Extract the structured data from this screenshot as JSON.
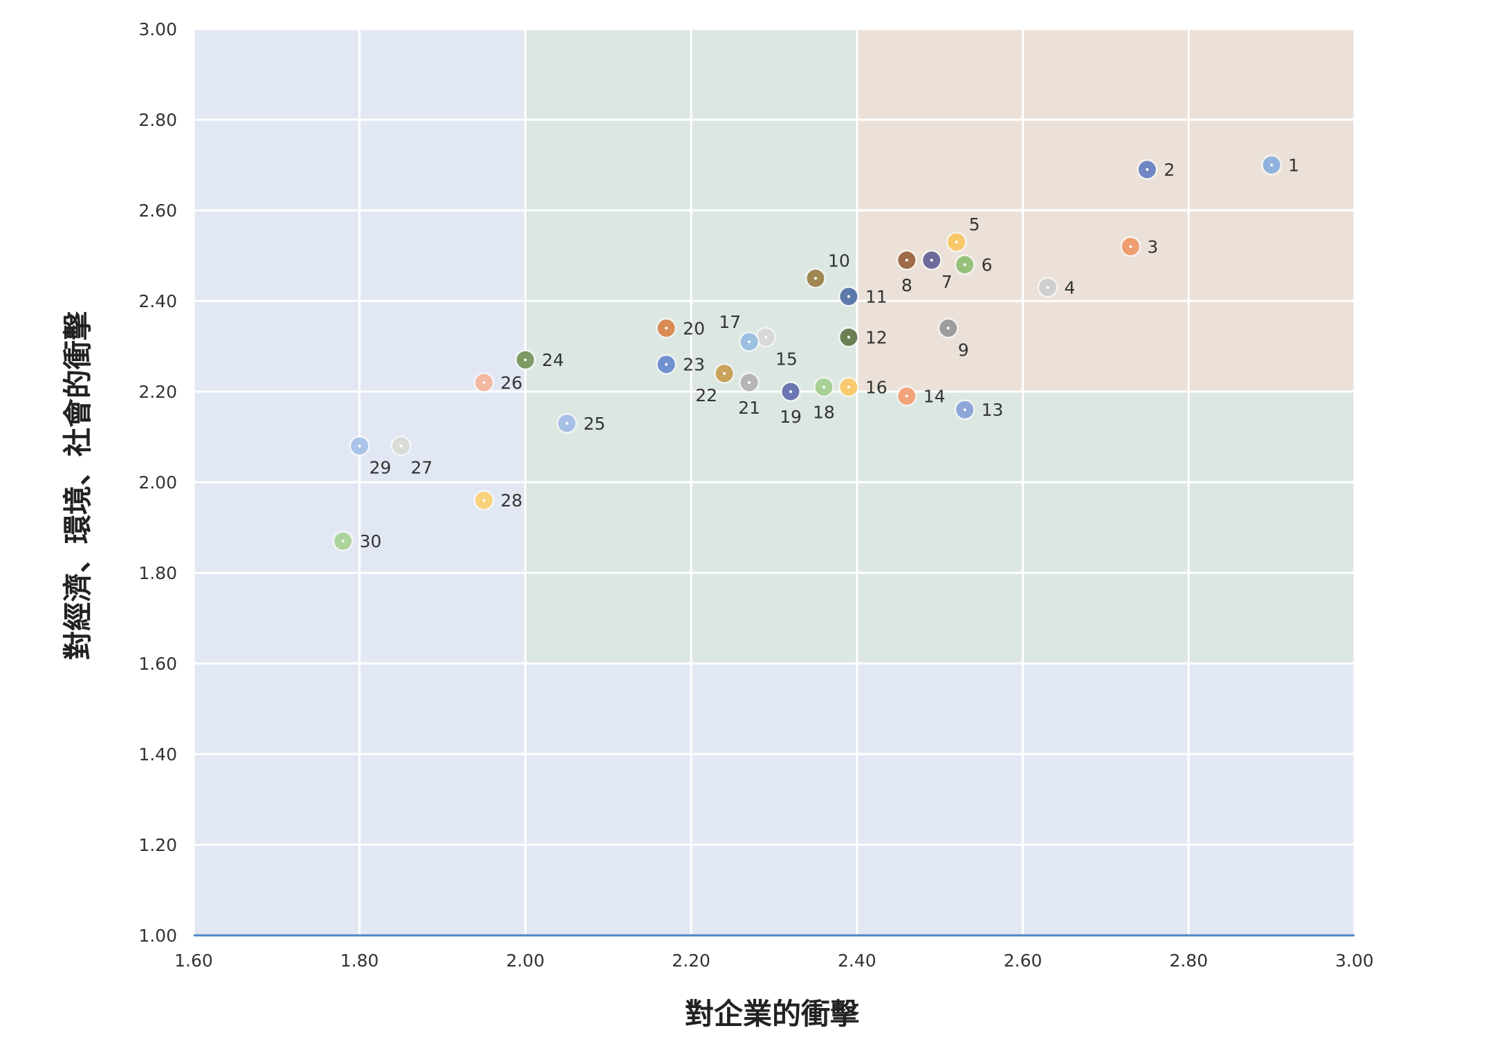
{
  "chart_data": {
    "type": "scatter",
    "xlabel": "對企業的衝擊",
    "ylabel": "對經濟、環境、社會的衝擊",
    "xlim": [
      1.6,
      3.0
    ],
    "ylim": [
      1.0,
      3.0
    ],
    "x_ticks": [
      "1.60",
      "1.80",
      "2.00",
      "2.20",
      "2.40",
      "2.60",
      "2.80",
      "3.00"
    ],
    "y_ticks": [
      "1.00",
      "1.20",
      "1.40",
      "1.60",
      "1.80",
      "2.00",
      "2.20",
      "2.40",
      "2.60",
      "2.80",
      "3.00"
    ],
    "grid": true,
    "regions": [
      {
        "name": "low",
        "x": [
          1.6,
          3.0
        ],
        "y": [
          1.0,
          3.0
        ],
        "color": "#e2e8f3"
      },
      {
        "name": "medium",
        "x": [
          2.0,
          3.0
        ],
        "y": [
          1.6,
          3.0
        ],
        "color": "#dce7e1"
      },
      {
        "name": "high",
        "x": [
          2.4,
          3.0
        ],
        "y": [
          2.2,
          3.0
        ],
        "color": "#ebe1d8"
      }
    ],
    "points": [
      {
        "label": "1",
        "x": 2.9,
        "y": 2.7,
        "color": "#8fb3dc",
        "label_pos": "right"
      },
      {
        "label": "2",
        "x": 2.75,
        "y": 2.69,
        "color": "#6f86c4",
        "label_pos": "right"
      },
      {
        "label": "3",
        "x": 2.73,
        "y": 2.52,
        "color": "#ee9d6e",
        "label_pos": "right"
      },
      {
        "label": "4",
        "x": 2.63,
        "y": 2.43,
        "color": "#cfcfcf",
        "label_pos": "right"
      },
      {
        "label": "5",
        "x": 2.52,
        "y": 2.53,
        "color": "#f8c768",
        "label_pos": "upright"
      },
      {
        "label": "6",
        "x": 2.53,
        "y": 2.48,
        "color": "#96c17c",
        "label_pos": "right"
      },
      {
        "label": "7",
        "x": 2.49,
        "y": 2.49,
        "color": "#6c6a99",
        "label_pos": "belowright"
      },
      {
        "label": "8",
        "x": 2.46,
        "y": 2.49,
        "color": "#9e6c48",
        "label_pos": "below"
      },
      {
        "label": "9",
        "x": 2.51,
        "y": 2.34,
        "color": "#9c9c9c",
        "label_pos": "belowright"
      },
      {
        "label": "10",
        "x": 2.35,
        "y": 2.45,
        "color": "#a08752",
        "label_pos": "upright"
      },
      {
        "label": "11",
        "x": 2.39,
        "y": 2.41,
        "color": "#5d79aa",
        "label_pos": "right"
      },
      {
        "label": "12",
        "x": 2.39,
        "y": 2.32,
        "color": "#6b7f55",
        "label_pos": "right"
      },
      {
        "label": "13",
        "x": 2.53,
        "y": 2.16,
        "color": "#8ea6d8",
        "label_pos": "right"
      },
      {
        "label": "14",
        "x": 2.46,
        "y": 2.19,
        "color": "#f2a37c",
        "label_pos": "right"
      },
      {
        "label": "15",
        "x": 2.29,
        "y": 2.32,
        "color": "#d8d8d8",
        "label_pos": "belowright"
      },
      {
        "label": "16",
        "x": 2.39,
        "y": 2.21,
        "color": "#f9cb6f",
        "label_pos": "right"
      },
      {
        "label": "17",
        "x": 2.27,
        "y": 2.31,
        "color": "#9dbfe2",
        "label_pos": "upleft"
      },
      {
        "label": "18",
        "x": 2.36,
        "y": 2.21,
        "color": "#a8d196",
        "label_pos": "below"
      },
      {
        "label": "19",
        "x": 2.32,
        "y": 2.2,
        "color": "#6b76b3",
        "label_pos": "below"
      },
      {
        "label": "20",
        "x": 2.17,
        "y": 2.34,
        "color": "#d98b55",
        "label_pos": "right"
      },
      {
        "label": "21",
        "x": 2.27,
        "y": 2.22,
        "color": "#b5b5b5",
        "label_pos": "below"
      },
      {
        "label": "22",
        "x": 2.24,
        "y": 2.24,
        "color": "#c9a25c",
        "label_pos": "belowleft"
      },
      {
        "label": "23",
        "x": 2.17,
        "y": 2.26,
        "color": "#6f91cf",
        "label_pos": "right"
      },
      {
        "label": "24",
        "x": 2.0,
        "y": 2.27,
        "color": "#7c9a63",
        "label_pos": "right"
      },
      {
        "label": "25",
        "x": 2.05,
        "y": 2.13,
        "color": "#a8c0e6",
        "label_pos": "right"
      },
      {
        "label": "26",
        "x": 1.95,
        "y": 2.22,
        "color": "#f4b9a2",
        "label_pos": "right"
      },
      {
        "label": "27",
        "x": 1.85,
        "y": 2.08,
        "color": "#d9dbd7",
        "label_pos": "belowright"
      },
      {
        "label": "28",
        "x": 1.95,
        "y": 1.96,
        "color": "#f9d27e",
        "label_pos": "right"
      },
      {
        "label": "29",
        "x": 1.8,
        "y": 2.08,
        "color": "#a9c4e8",
        "label_pos": "belowright"
      },
      {
        "label": "30",
        "x": 1.78,
        "y": 1.87,
        "color": "#acd39b",
        "label_pos": "right"
      }
    ]
  }
}
